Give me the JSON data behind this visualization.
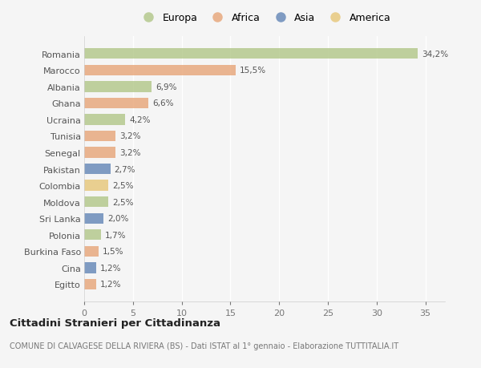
{
  "countries": [
    "Romania",
    "Marocco",
    "Albania",
    "Ghana",
    "Ucraina",
    "Tunisia",
    "Senegal",
    "Pakistan",
    "Colombia",
    "Moldova",
    "Sri Lanka",
    "Polonia",
    "Burkina Faso",
    "Cina",
    "Egitto"
  ],
  "values": [
    34.2,
    15.5,
    6.9,
    6.6,
    4.2,
    3.2,
    3.2,
    2.7,
    2.5,
    2.5,
    2.0,
    1.7,
    1.5,
    1.2,
    1.2
  ],
  "labels": [
    "34,2%",
    "15,5%",
    "6,9%",
    "6,6%",
    "4,2%",
    "3,2%",
    "3,2%",
    "2,7%",
    "2,5%",
    "2,5%",
    "2,0%",
    "1,7%",
    "1,5%",
    "1,2%",
    "1,2%"
  ],
  "continents": [
    "Europa",
    "Africa",
    "Europa",
    "Africa",
    "Europa",
    "Africa",
    "Africa",
    "Asia",
    "America",
    "Europa",
    "Asia",
    "Europa",
    "Africa",
    "Asia",
    "Africa"
  ],
  "colors": {
    "Europa": "#b5c98e",
    "Africa": "#e8a97e",
    "Asia": "#6b8cba",
    "America": "#e8c97e"
  },
  "legend_order": [
    "Europa",
    "Africa",
    "Asia",
    "America"
  ],
  "legend_colors": [
    "#b5c98e",
    "#e8a97e",
    "#6b8cba",
    "#e8c97e"
  ],
  "xlim": [
    0,
    37
  ],
  "xticks": [
    0,
    5,
    10,
    15,
    20,
    25,
    30,
    35
  ],
  "title": "Cittadini Stranieri per Cittadinanza",
  "subtitle": "COMUNE DI CALVAGESE DELLA RIVIERA (BS) - Dati ISTAT al 1° gennaio - Elaborazione TUTTITALIA.IT",
  "bg_color": "#f5f5f5",
  "grid_color": "#ffffff",
  "bar_height": 0.65
}
